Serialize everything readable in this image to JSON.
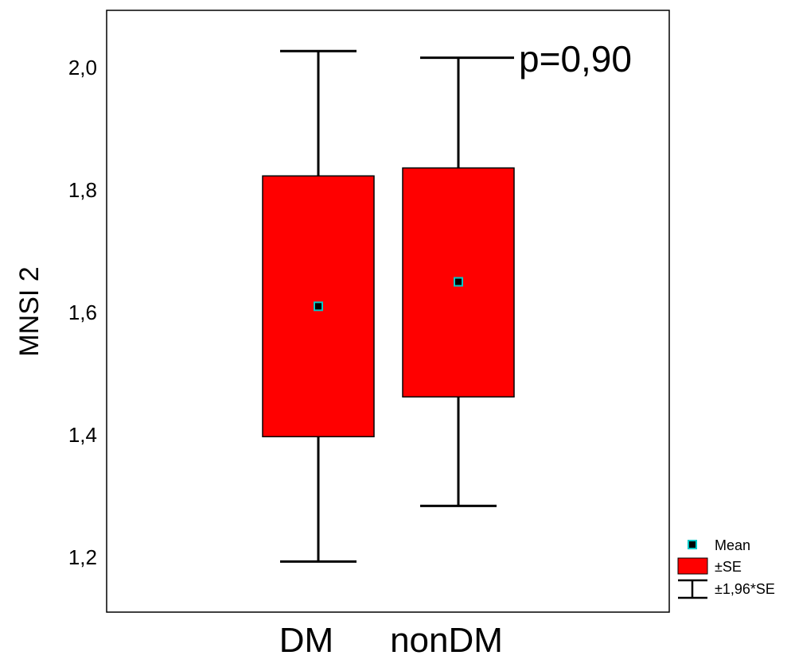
{
  "chart_data": {
    "type": "box",
    "title": "",
    "xlabel": "",
    "ylabel": "MNSI 2",
    "ylim": [
      1.1,
      2.1
    ],
    "yticks": [
      "1,2",
      "1,4",
      "1,6",
      "1,8",
      "2,0"
    ],
    "ytick_values": [
      1.2,
      1.4,
      1.6,
      1.8,
      2.0
    ],
    "categories": [
      "DM",
      "nonDM"
    ],
    "series": [
      {
        "category": "DM",
        "mean": 1.61,
        "se_low": 1.397,
        "se_high": 1.823,
        "ci_low": 1.193,
        "ci_high": 2.027
      },
      {
        "category": "nonDM",
        "mean": 1.65,
        "se_low": 1.462,
        "se_high": 1.836,
        "ci_low": 1.284,
        "ci_high": 2.016
      }
    ],
    "annotation": "p=0,90",
    "legend": {
      "placement": "bottom-right",
      "items": [
        {
          "label": "Mean",
          "symbol": "mean-marker"
        },
        {
          "label": "±SE",
          "symbol": "box"
        },
        {
          "label": "±1,96*SE",
          "symbol": "whisker"
        }
      ]
    },
    "colors": {
      "box_fill": "#ff0000",
      "mean_marker": "#00c8c8",
      "line": "#000000"
    }
  }
}
